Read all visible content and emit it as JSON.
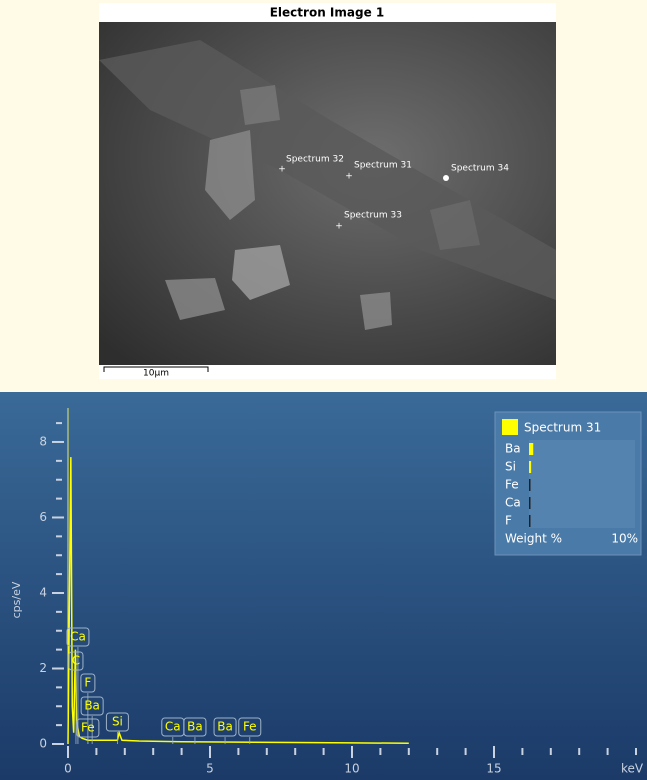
{
  "electron_image": {
    "title": "Electron Image 1",
    "scale_bar": "10µm",
    "points": [
      "Spectrum 32",
      "Spectrum 31",
      "Spectrum 34",
      "Spectrum 33"
    ]
  },
  "chart_data": {
    "type": "line",
    "y_label": "cps/eV",
    "x_label": "keV",
    "xlim": [
      0,
      20
    ],
    "xticks": [
      0,
      5,
      10,
      15
    ],
    "x_minor_ticks": [
      1,
      2,
      3,
      4,
      6,
      7,
      8,
      9,
      11,
      12,
      13,
      14,
      16,
      17,
      18,
      19,
      20
    ],
    "ylim": [
      0,
      8.9
    ],
    "yticks": [
      0,
      2,
      4,
      6,
      8
    ],
    "y_minor_ticks": [
      0.5,
      1,
      1.5,
      2.5,
      3,
      3.5,
      4.5,
      5,
      5.5,
      6.5,
      7,
      7.5,
      8.5
    ],
    "series": [
      {
        "name": "Spectrum 31",
        "color": "#ffff00",
        "x": [
          0,
          0.1,
          0.15,
          0.2,
          0.26,
          0.3,
          0.4,
          0.5,
          0.7,
          1.0,
          1.74,
          1.8,
          1.9,
          2.5,
          4,
          6,
          8,
          10,
          12
        ],
        "values": [
          0,
          7.6,
          1.0,
          0.3,
          2.5,
          0.6,
          0.2,
          0.15,
          0.1,
          0.1,
          0.1,
          0.3,
          0.1,
          0.08,
          0.06,
          0.05,
          0.04,
          0.03,
          0.02
        ]
      }
    ],
    "peak_labels": [
      {
        "label": "Ca",
        "energy": 0.35
      },
      {
        "label": "C",
        "energy": 0.28
      },
      {
        "label": "F",
        "energy": 0.7
      },
      {
        "label": "Ba",
        "energy": 0.85
      },
      {
        "label": "Fe",
        "energy": 0.7
      },
      {
        "label": "Si",
        "energy": 1.74
      },
      {
        "label": "Ca",
        "energy": 3.69
      },
      {
        "label": "Ba",
        "energy": 4.47
      },
      {
        "label": "Ba",
        "energy": 5.53
      },
      {
        "label": "Fe",
        "energy": 6.4
      }
    ],
    "weight": {
      "title": "Weight %",
      "elements": [
        "Ba",
        "Si",
        "Fe",
        "Ca",
        "F"
      ],
      "values": [
        0.4,
        0.2,
        0.1,
        0.1,
        0.1
      ],
      "max": {
        "value": 10,
        "label": "10%"
      }
    }
  }
}
